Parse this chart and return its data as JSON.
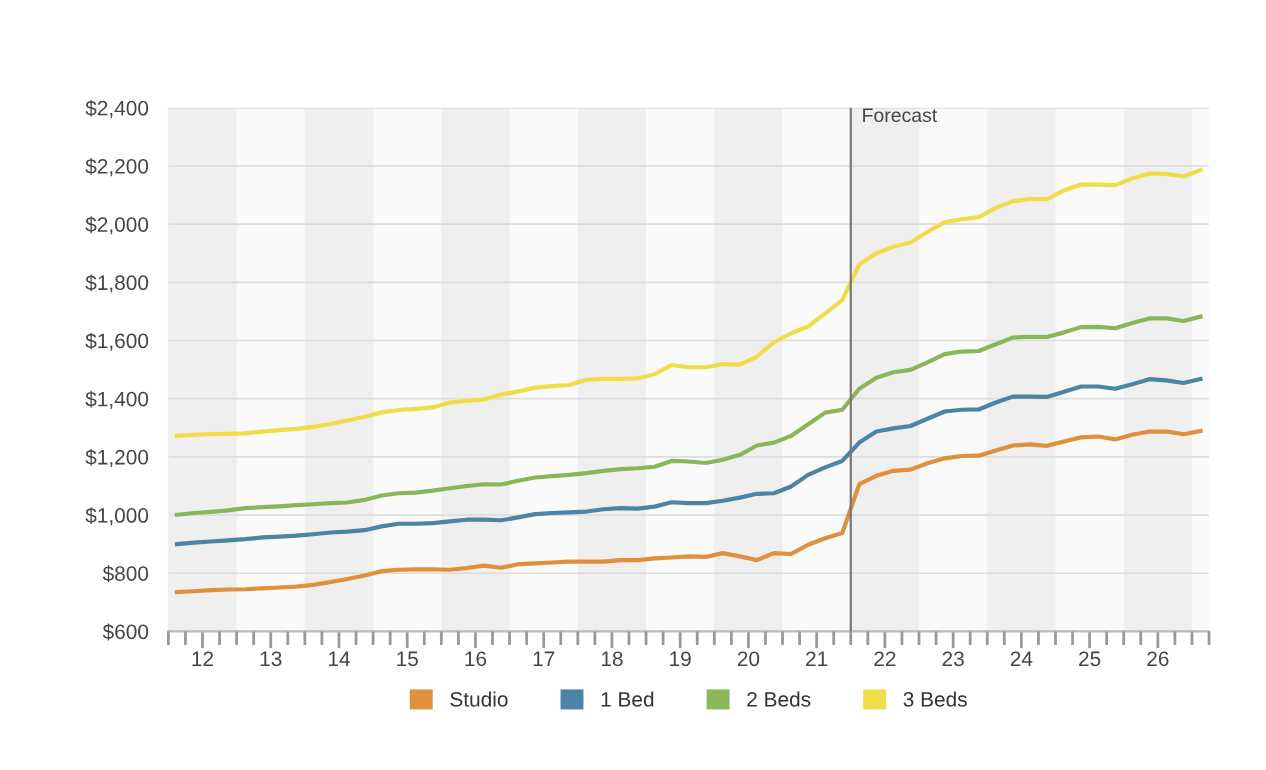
{
  "chart_data": {
    "type": "line",
    "x": [
      11.625,
      11.875,
      12.125,
      12.375,
      12.625,
      12.875,
      13.125,
      13.375,
      13.625,
      13.875,
      14.125,
      14.375,
      14.625,
      14.875,
      15.125,
      15.375,
      15.625,
      15.875,
      16.125,
      16.375,
      16.625,
      16.875,
      17.125,
      17.375,
      17.625,
      17.875,
      18.125,
      18.375,
      18.625,
      18.875,
      19.125,
      19.375,
      19.625,
      19.875,
      20.125,
      20.375,
      20.625,
      20.875,
      21.125,
      21.375,
      21.625,
      21.875,
      22.125,
      22.375,
      22.625,
      22.875,
      23.125,
      23.375,
      23.625,
      23.875,
      24.125,
      24.375,
      24.625,
      24.875,
      25.125,
      25.375,
      25.625,
      25.875,
      26.125,
      26.375,
      26.625
    ],
    "series": [
      {
        "name": "Studio",
        "color": "#e08f3a",
        "values": [
          735,
          738,
          742,
          744,
          745,
          748,
          751,
          754,
          760,
          770,
          780,
          792,
          807,
          812,
          813,
          813,
          812,
          818,
          826,
          819,
          831,
          834,
          837,
          840,
          840,
          840,
          845,
          845,
          851,
          854,
          858,
          856,
          869,
          858,
          845,
          869,
          866,
          898,
          920,
          938,
          1106,
          1135,
          1152,
          1156,
          1178,
          1195,
          1203,
          1204,
          1222,
          1239,
          1243,
          1238,
          1253,
          1267,
          1270,
          1260,
          1276,
          1287,
          1287,
          1278,
          1289
        ]
      },
      {
        "name": "1 Bed",
        "color": "#4a84a6",
        "values": [
          900,
          905,
          909,
          913,
          917,
          923,
          926,
          929,
          934,
          940,
          943,
          948,
          961,
          970,
          970,
          972,
          978,
          984,
          984,
          982,
          992,
          1003,
          1007,
          1009,
          1012,
          1020,
          1024,
          1022,
          1029,
          1044,
          1041,
          1041,
          1049,
          1060,
          1073,
          1075,
          1098,
          1138,
          1164,
          1186,
          1249,
          1287,
          1298,
          1306,
          1331,
          1356,
          1362,
          1363,
          1387,
          1407,
          1407,
          1406,
          1424,
          1442,
          1442,
          1434,
          1450,
          1467,
          1463,
          1454,
          1468
        ]
      },
      {
        "name": "2 Beds",
        "color": "#8ab65a",
        "values": [
          1001,
          1007,
          1011,
          1016,
          1024,
          1027,
          1030,
          1034,
          1037,
          1041,
          1043,
          1052,
          1067,
          1075,
          1077,
          1084,
          1092,
          1100,
          1106,
          1105,
          1118,
          1129,
          1134,
          1138,
          1144,
          1152,
          1158,
          1161,
          1166,
          1186,
          1184,
          1179,
          1190,
          1207,
          1239,
          1249,
          1272,
          1312,
          1352,
          1362,
          1434,
          1472,
          1491,
          1499,
          1525,
          1553,
          1562,
          1564,
          1587,
          1610,
          1613,
          1612,
          1628,
          1646,
          1647,
          1642,
          1660,
          1676,
          1676,
          1667,
          1682
        ]
      },
      {
        "name": "3 Beds",
        "color": "#f0dc4a",
        "values": [
          1272,
          1276,
          1278,
          1279,
          1281,
          1287,
          1292,
          1296,
          1303,
          1313,
          1325,
          1338,
          1353,
          1361,
          1365,
          1370,
          1387,
          1393,
          1397,
          1414,
          1425,
          1438,
          1443,
          1447,
          1465,
          1468,
          1468,
          1470,
          1484,
          1516,
          1508,
          1508,
          1519,
          1517,
          1545,
          1594,
          1625,
          1648,
          1693,
          1739,
          1862,
          1900,
          1922,
          1937,
          1974,
          2006,
          2017,
          2024,
          2056,
          2079,
          2086,
          2086,
          2116,
          2136,
          2136,
          2134,
          2157,
          2174,
          2173,
          2164,
          2186
        ]
      }
    ],
    "xlim": [
      11.5,
      26.75
    ],
    "xticks": [
      {
        "value": 11.5,
        "label": null
      },
      {
        "value": 11.75,
        "label": null
      },
      12,
      {
        "value": 12.25,
        "label": null
      },
      {
        "value": 12.5,
        "label": null
      },
      {
        "value": 12.75,
        "label": null
      },
      13,
      {
        "value": 13.25,
        "label": null
      },
      {
        "value": 13.5,
        "label": null
      },
      {
        "value": 13.75,
        "label": null
      },
      14,
      {
        "value": 14.25,
        "label": null
      },
      {
        "value": 14.5,
        "label": null
      },
      {
        "value": 14.75,
        "label": null
      },
      15,
      {
        "value": 15.25,
        "label": null
      },
      {
        "value": 15.5,
        "label": null
      },
      {
        "value": 15.75,
        "label": null
      },
      16,
      {
        "value": 16.25,
        "label": null
      },
      {
        "value": 16.5,
        "label": null
      },
      {
        "value": 16.75,
        "label": null
      },
      17,
      {
        "value": 17.25,
        "label": null
      },
      {
        "value": 17.5,
        "label": null
      },
      {
        "value": 17.75,
        "label": null
      },
      18,
      {
        "value": 18.25,
        "label": null
      },
      {
        "value": 18.5,
        "label": null
      },
      {
        "value": 18.75,
        "label": null
      },
      19,
      {
        "value": 19.25,
        "label": null
      },
      {
        "value": 19.5,
        "label": null
      },
      {
        "value": 19.75,
        "label": null
      },
      20,
      {
        "value": 20.25,
        "label": null
      },
      {
        "value": 20.5,
        "label": null
      },
      {
        "value": 20.75,
        "label": null
      },
      21,
      {
        "value": 21.25,
        "label": null
      },
      {
        "value": 21.5,
        "label": null
      },
      {
        "value": 21.75,
        "label": null
      },
      22,
      {
        "value": 22.25,
        "label": null
      },
      {
        "value": 22.5,
        "label": null
      },
      {
        "value": 22.75,
        "label": null
      },
      23,
      {
        "value": 23.25,
        "label": null
      },
      {
        "value": 23.5,
        "label": null
      },
      {
        "value": 23.75,
        "label": null
      },
      24,
      {
        "value": 24.25,
        "label": null
      },
      {
        "value": 24.5,
        "label": null
      },
      {
        "value": 24.75,
        "label": null
      },
      25,
      {
        "value": 25.25,
        "label": null
      },
      {
        "value": 25.5,
        "label": null
      },
      {
        "value": 25.75,
        "label": null
      },
      26,
      {
        "value": 26.25,
        "label": null
      },
      {
        "value": 26.5,
        "label": null
      },
      {
        "value": 26.75,
        "label": null
      }
    ],
    "ylim": [
      600,
      2400
    ],
    "yticks": [
      {
        "value": 600,
        "label": "$600"
      },
      {
        "value": 800,
        "label": "$800"
      },
      {
        "value": 1000,
        "label": "$1,000"
      },
      {
        "value": 1200,
        "label": "$1,200"
      },
      {
        "value": 1400,
        "label": "$1,400"
      },
      {
        "value": 1600,
        "label": "$1,600"
      },
      {
        "value": 1800,
        "label": "$1,800"
      },
      {
        "value": 2000,
        "label": "$2,000"
      },
      {
        "value": 2200,
        "label": "$2,200"
      },
      {
        "value": 2400,
        "label": "$2,400"
      }
    ],
    "grid": "y",
    "legend": "bottom",
    "marker": "none",
    "line_style": "solid",
    "ref_lines": [
      {
        "axis": "x",
        "value": 21.5,
        "label": "Forecast",
        "color": "#777777"
      }
    ],
    "bands": [
      {
        "axis": "x",
        "from": 11.5,
        "to": 12.5,
        "color": "#efefef"
      },
      {
        "axis": "x",
        "from": 13.5,
        "to": 14.5,
        "color": "#efefef"
      },
      {
        "axis": "x",
        "from": 15.5,
        "to": 16.5,
        "color": "#efefef"
      },
      {
        "axis": "x",
        "from": 17.5,
        "to": 18.5,
        "color": "#efefef"
      },
      {
        "axis": "x",
        "from": 19.5,
        "to": 20.5,
        "color": "#efefef"
      },
      {
        "axis": "x",
        "from": 21.5,
        "to": 22.5,
        "color": "#efefef"
      },
      {
        "axis": "x",
        "from": 23.5,
        "to": 24.5,
        "color": "#efefef"
      },
      {
        "axis": "x",
        "from": 25.5,
        "to": 26.5,
        "color": "#efefef"
      }
    ]
  }
}
